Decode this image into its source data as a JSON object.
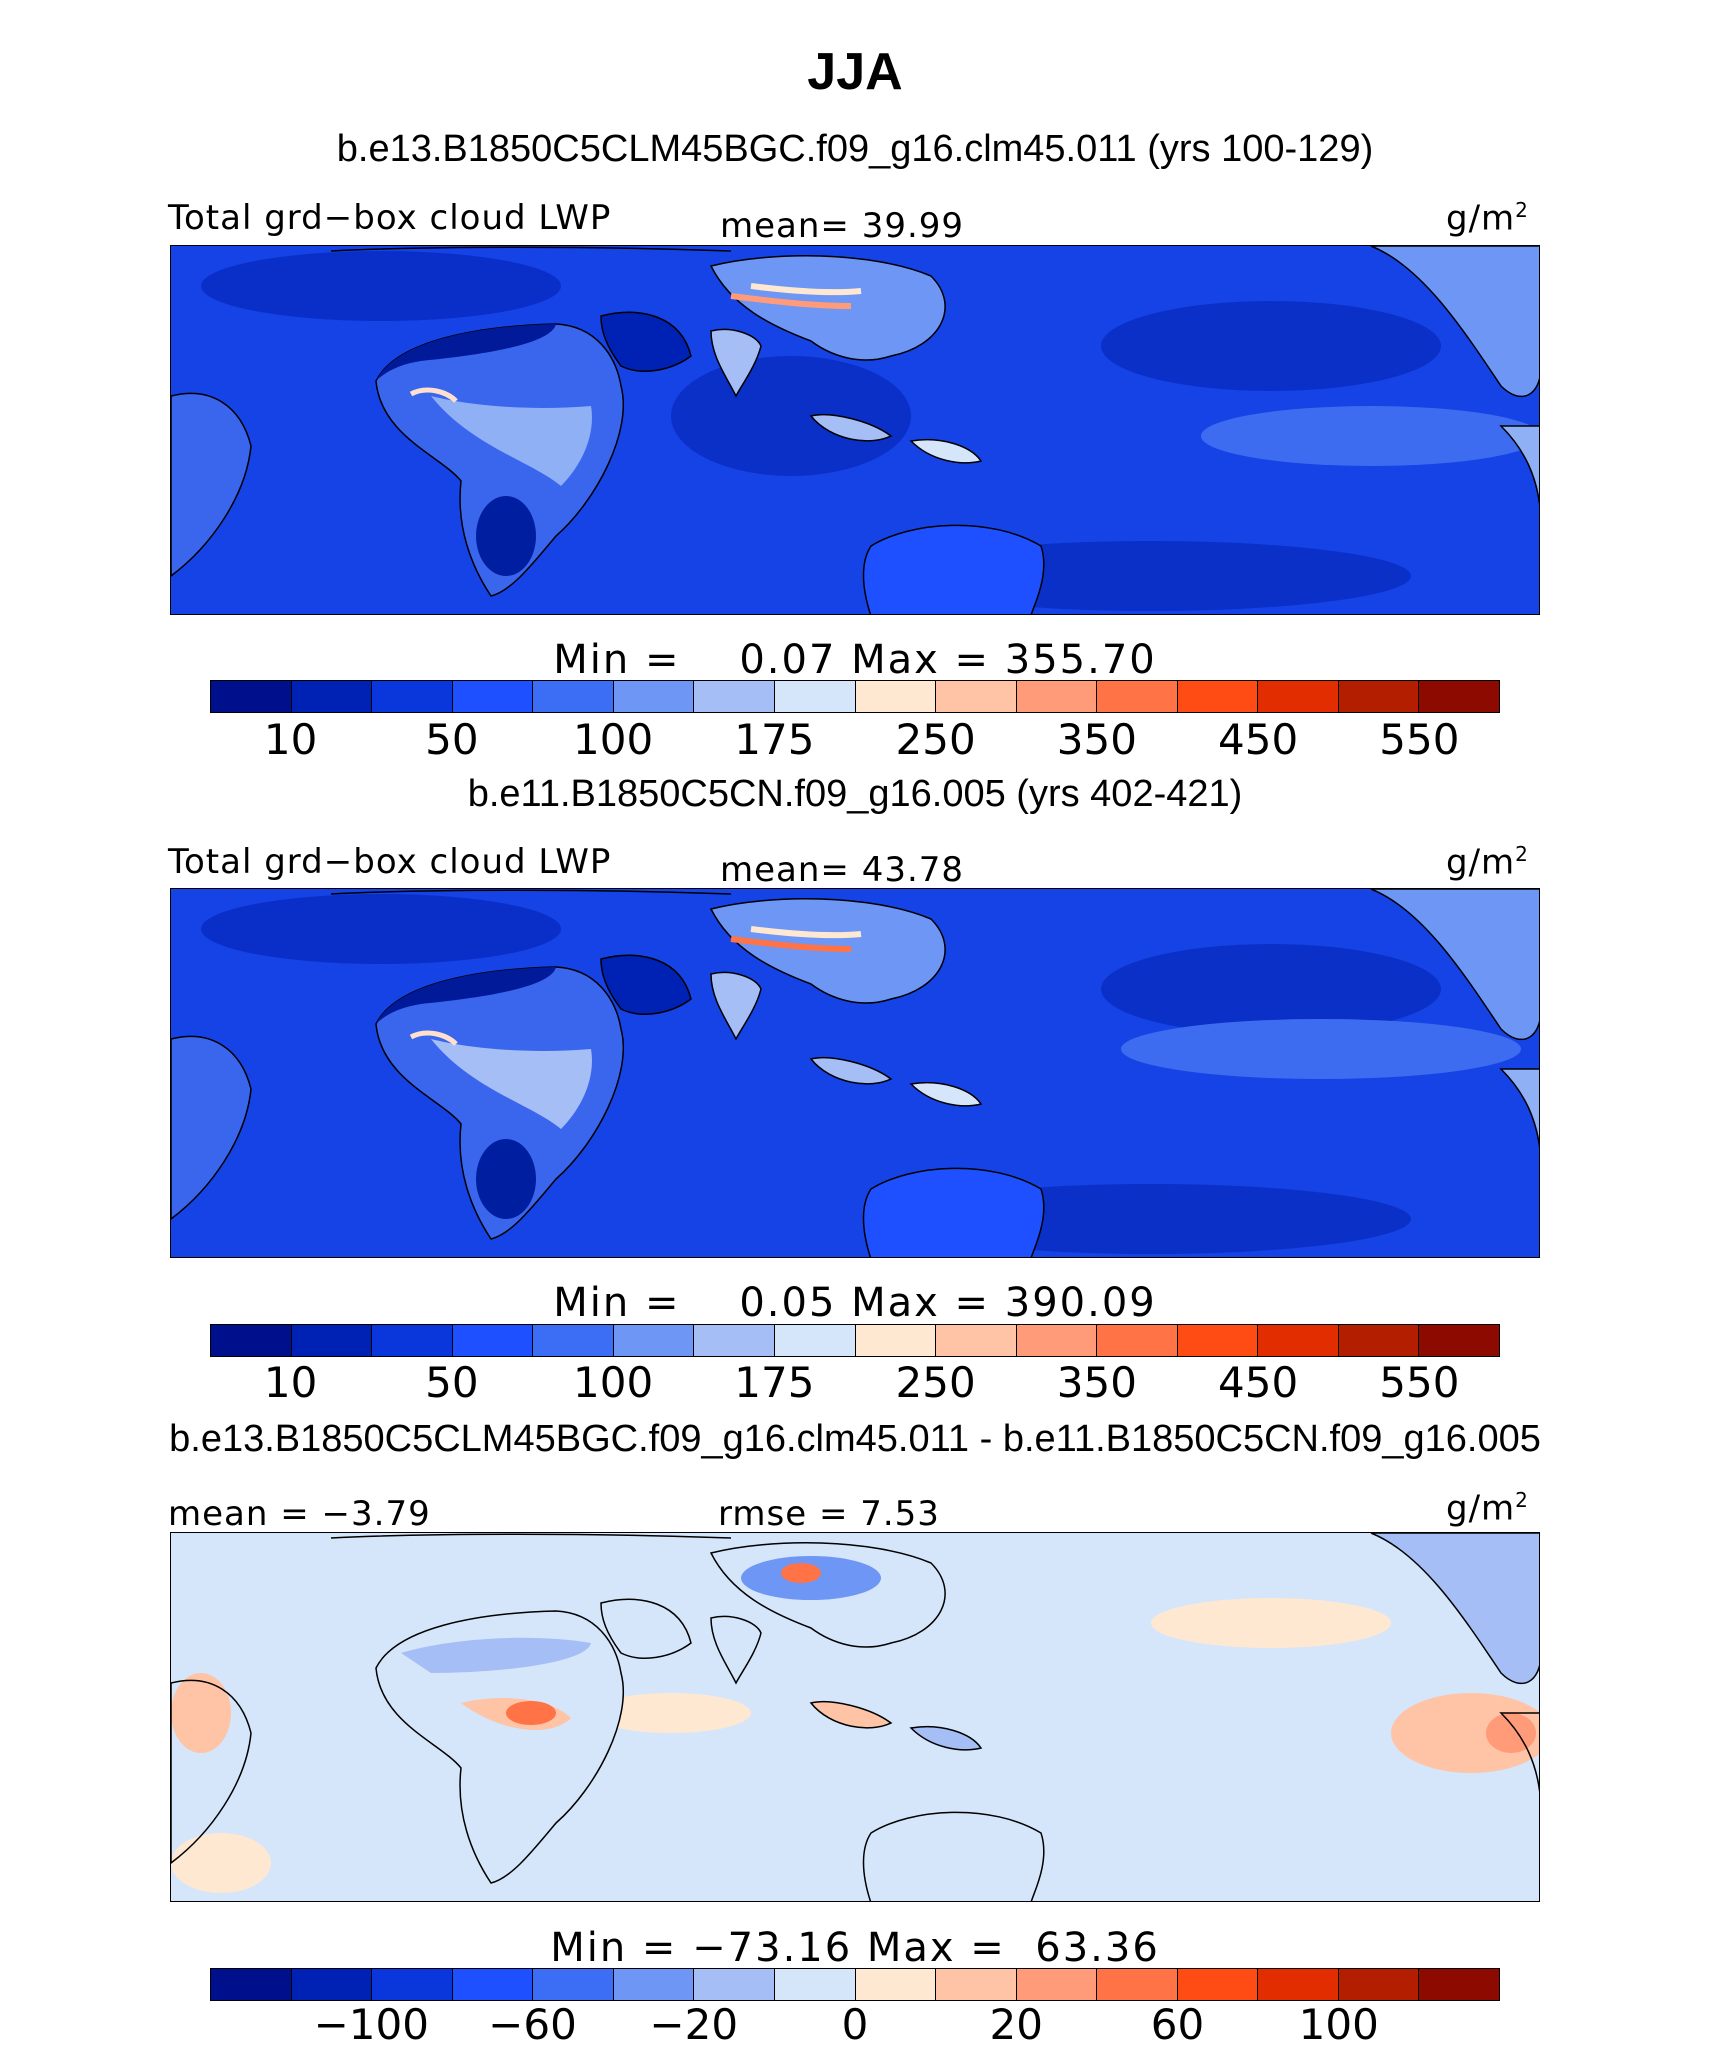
{
  "title": "JJA",
  "panels": [
    {
      "case": "b.e13.B1850C5CLM45BGC.f09_g16.clm45.011 (yrs 100-129)",
      "variable": "Total grd−box cloud LWP",
      "stat": "mean=  39.99",
      "units": "g/m",
      "units_exp": "2",
      "minmax": "Min =    0.07 Max = 355.70"
    },
    {
      "case": "b.e11.B1850C5CN.f09_g16.005 (yrs 402-421)",
      "variable": "Total grd−box cloud LWP",
      "stat": "mean=  43.78",
      "units": "g/m",
      "units_exp": "2",
      "minmax": "Min =    0.05 Max = 390.09"
    },
    {
      "case": "b.e13.B1850C5CLM45BGC.f09_g16.clm45.011 - b.e11.B1850C5CN.f09_g16.005",
      "variable": "mean =  −3.79",
      "stat": "rmse =   7.53",
      "units": "g/m",
      "units_exp": "2",
      "minmax": "Min = −73.16 Max =  63.36"
    }
  ],
  "colorbars": {
    "abs_ticks": [
      "10",
      "50",
      "100",
      "175",
      "250",
      "350",
      "450",
      "550"
    ],
    "diff_ticks": [
      "−100",
      "−60",
      "−20",
      "0",
      "20",
      "60",
      "100"
    ],
    "colors": [
      "#000f8c",
      "#0022b4",
      "#0a37dc",
      "#1e50ff",
      "#3c6ef5",
      "#6e96f5",
      "#a5bef5",
      "#d5e6fa",
      "#ffe8d2",
      "#ffc3a5",
      "#ff9b78",
      "#ff7346",
      "#ff4b14",
      "#e12d00",
      "#b41e00",
      "#8c0a00"
    ]
  }
}
